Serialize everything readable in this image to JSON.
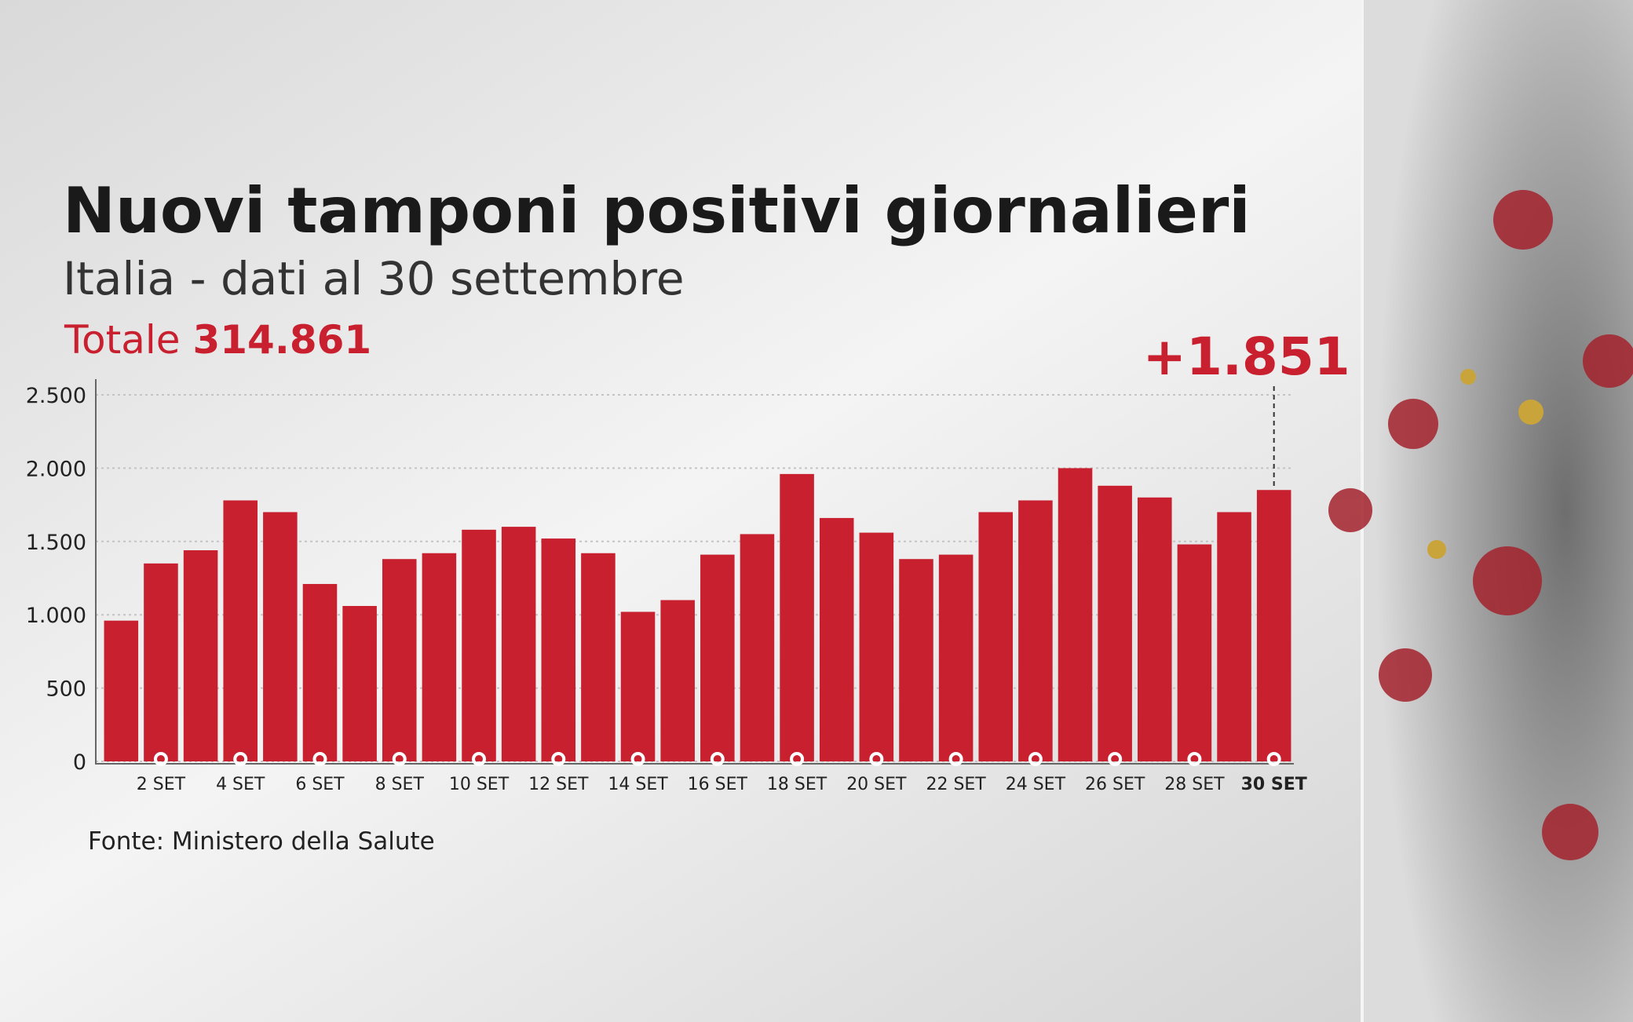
{
  "chart_data": {
    "type": "bar",
    "title": "Nuovi tamponi positivi giornalieri",
    "subtitle": "Italia - dati al 30 settembre",
    "total_label": "Totale",
    "total_value": "314.861",
    "annotation": "+1.851",
    "source": "Fonte: Ministero della Salute",
    "categories": [
      null,
      "2 SET",
      null,
      "4 SET",
      null,
      "6 SET",
      null,
      "8 SET",
      null,
      "10 SET",
      null,
      "12 SET",
      null,
      "14 SET",
      null,
      "16 SET",
      null,
      "18 SET",
      null,
      "20 SET",
      null,
      "22 SET",
      null,
      "24 SET",
      null,
      "26 SET",
      null,
      "28 SET",
      null,
      "30 SET"
    ],
    "values": [
      960,
      1350,
      1440,
      1780,
      1700,
      1210,
      1060,
      1380,
      1420,
      1580,
      1600,
      1520,
      1420,
      1020,
      1100,
      1410,
      1550,
      1960,
      1660,
      1560,
      1380,
      1410,
      1700,
      1780,
      2000,
      1880,
      1800,
      1480,
      1700,
      1851
    ],
    "color": "#c8202f",
    "ylim": [
      0,
      2500
    ],
    "yticks": [
      0,
      500,
      {
        "value": 1000,
        "label": "1.000"
      },
      {
        "value": 1500,
        "label": "1.500"
      },
      {
        "value": 2000,
        "label": "2.000"
      },
      {
        "value": 2500,
        "label": "2.500"
      }
    ],
    "grid": true
  }
}
